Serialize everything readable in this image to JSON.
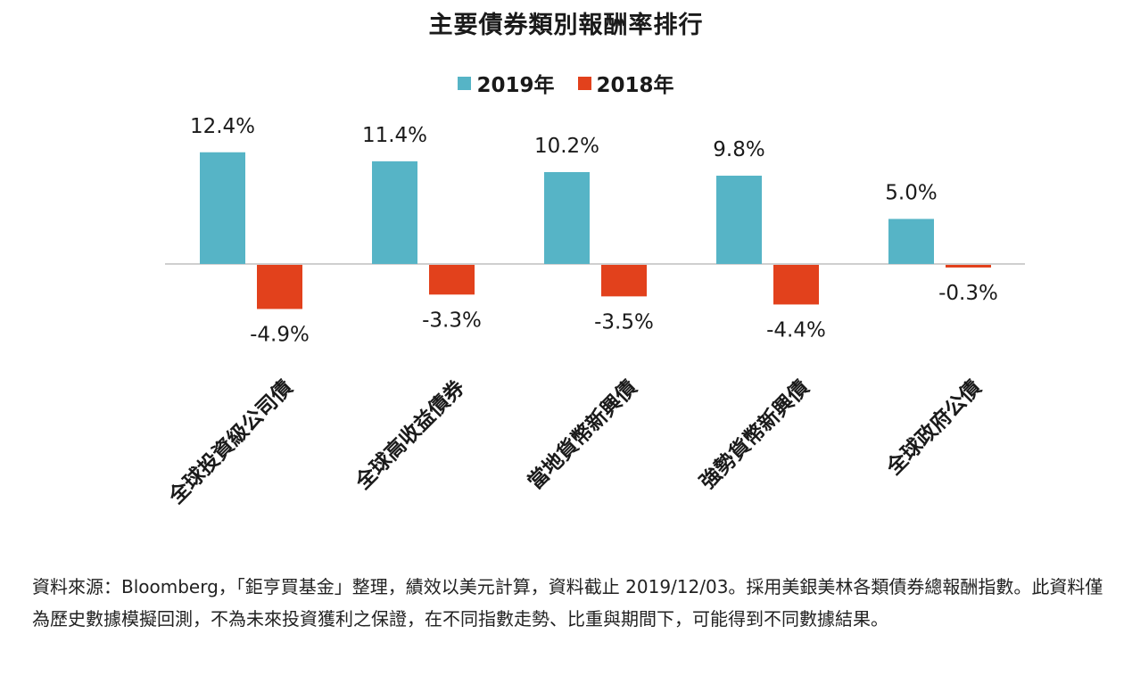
{
  "chart_data": {
    "type": "bar",
    "title": "主要債券類別報酬率排行",
    "categories": [
      "全球投資級公司債",
      "全球高收益債券",
      "當地貨幣新興債",
      "強勢貨幣新興債",
      "全球政府公債"
    ],
    "series": [
      {
        "name": "2019年",
        "color": "#56b4c6",
        "values": [
          12.4,
          11.4,
          10.2,
          9.8,
          5.0
        ]
      },
      {
        "name": "2018年",
        "color": "#e2411c",
        "values": [
          -4.9,
          -3.3,
          -3.5,
          -4.4,
          -0.3
        ]
      }
    ],
    "value_labels": [
      [
        "12.4%",
        "11.4%",
        "10.2%",
        "9.8%",
        "5.0%"
      ],
      [
        "-4.9%",
        "-3.3%",
        "-3.5%",
        "-4.4%",
        "-0.3%"
      ]
    ],
    "legend_position": "top-center",
    "grid": false
  },
  "source_note": "資料來源：Bloomberg，「鉅亨買基金」整理，績效以美元計算，資料截止 2019/12/03。採用美銀美林各類債券總報酬指數。此資料僅為歷史數據模擬回測，不為未來投資獲利之保證，在不同指數走勢、比重與期間下，可能得到不同數據結果。"
}
